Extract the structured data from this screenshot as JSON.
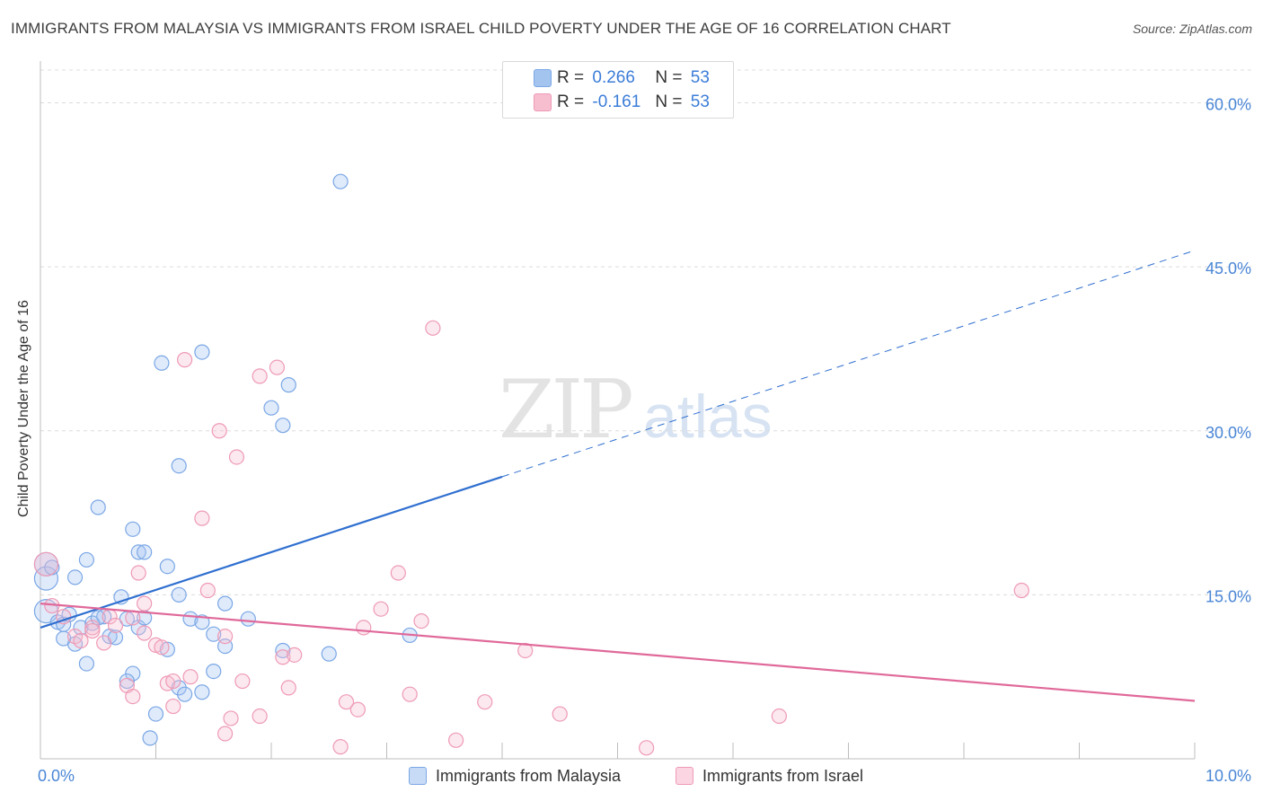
{
  "header": {
    "title": "IMMIGRANTS FROM MALAYSIA VS IMMIGRANTS FROM ISRAEL CHILD POVERTY UNDER THE AGE OF 16 CORRELATION CHART",
    "source": "Source: ZipAtlas.com"
  },
  "watermark": {
    "zip": "ZIP",
    "atlas": "atlas"
  },
  "legend": {
    "r_label": "R =",
    "n_label": "N =",
    "series": [
      {
        "r": "0.266",
        "n": "53"
      },
      {
        "r": "-0.161",
        "n": "53"
      }
    ]
  },
  "chart_data": {
    "type": "scatter",
    "title": "IMMIGRANTS FROM MALAYSIA VS IMMIGRANTS FROM ISRAEL CHILD POVERTY UNDER THE AGE OF 16 CORRELATION CHART",
    "xlabel": "",
    "ylabel": "Child Poverty Under the Age of 16",
    "xlim": [
      0,
      10
    ],
    "ylim": [
      0,
      63
    ],
    "x_tick_labels": [
      {
        "value": 0,
        "label": "0.0%"
      },
      {
        "value": 10,
        "label": "10.0%"
      }
    ],
    "y_tick_labels": [
      {
        "value": 15,
        "label": "15.0%"
      },
      {
        "value": 30,
        "label": "30.0%"
      },
      {
        "value": 45,
        "label": "45.0%"
      },
      {
        "value": 60,
        "label": "60.0%"
      }
    ],
    "series": [
      {
        "name": "Immigrants from Malaysia",
        "color": "#7aa7e6",
        "fill": "rgba(164,196,240,0.35)",
        "line_color": "#2f6fd0",
        "trend": {
          "x0": 0,
          "y0": 12.0,
          "x_solid_end": 4.0,
          "x1": 10,
          "y1": 46.5
        },
        "points": [
          [
            0.05,
            17.8
          ],
          [
            0.05,
            16.5
          ],
          [
            0.1,
            17.5
          ],
          [
            0.05,
            13.5
          ],
          [
            0.15,
            12.5
          ],
          [
            0.2,
            12.3
          ],
          [
            0.25,
            13.2
          ],
          [
            0.35,
            12.0
          ],
          [
            0.2,
            11.0
          ],
          [
            0.3,
            10.5
          ],
          [
            0.45,
            12.4
          ],
          [
            0.55,
            13.0
          ],
          [
            0.4,
            8.7
          ],
          [
            0.6,
            11.2
          ],
          [
            0.7,
            14.8
          ],
          [
            0.75,
            12.8
          ],
          [
            0.85,
            12.0
          ],
          [
            0.9,
            12.9
          ],
          [
            0.8,
            7.8
          ],
          [
            0.75,
            7.1
          ],
          [
            1.2,
            15.0
          ],
          [
            1.1,
            10.0
          ],
          [
            0.5,
            12.9
          ],
          [
            0.3,
            16.6
          ],
          [
            0.4,
            18.2
          ],
          [
            0.5,
            23.0
          ],
          [
            0.8,
            21.0
          ],
          [
            0.85,
            18.9
          ],
          [
            0.9,
            18.9
          ],
          [
            1.1,
            17.6
          ],
          [
            1.05,
            36.2
          ],
          [
            1.4,
            37.2
          ],
          [
            1.2,
            26.8
          ],
          [
            1.6,
            14.2
          ],
          [
            1.6,
            10.3
          ],
          [
            2.0,
            32.1
          ],
          [
            2.1,
            30.5
          ],
          [
            2.15,
            34.2
          ],
          [
            2.6,
            52.8
          ],
          [
            1.3,
            12.8
          ],
          [
            1.5,
            11.4
          ],
          [
            2.1,
            9.9
          ],
          [
            2.5,
            9.6
          ],
          [
            1.8,
            12.8
          ],
          [
            1.4,
            12.5
          ],
          [
            1.5,
            8.0
          ],
          [
            1.2,
            6.5
          ],
          [
            1.25,
            5.9
          ],
          [
            1.4,
            6.1
          ],
          [
            1.0,
            4.1
          ],
          [
            0.95,
            1.9
          ],
          [
            3.2,
            11.3
          ],
          [
            0.65,
            11.1
          ]
        ]
      },
      {
        "name": "Immigrants from Israel",
        "color": "#ee9ab5",
        "fill": "rgba(247,190,208,0.35)",
        "line_color": "#e0699a",
        "trend": {
          "x0": 0,
          "y0": 14.2,
          "x1": 10,
          "y1": 5.3
        },
        "points": [
          [
            0.05,
            17.8
          ],
          [
            0.1,
            14.0
          ],
          [
            0.2,
            13.0
          ],
          [
            0.3,
            11.2
          ],
          [
            0.45,
            12.0
          ],
          [
            0.55,
            10.6
          ],
          [
            0.6,
            13.0
          ],
          [
            0.65,
            12.2
          ],
          [
            0.8,
            12.9
          ],
          [
            0.9,
            11.5
          ],
          [
            0.85,
            17.0
          ],
          [
            0.9,
            14.2
          ],
          [
            0.45,
            11.7
          ],
          [
            0.35,
            10.8
          ],
          [
            0.75,
            6.7
          ],
          [
            0.8,
            5.7
          ],
          [
            1.0,
            10.4
          ],
          [
            1.05,
            10.2
          ],
          [
            1.1,
            6.9
          ],
          [
            1.15,
            7.1
          ],
          [
            1.3,
            7.5
          ],
          [
            1.15,
            4.8
          ],
          [
            1.25,
            36.5
          ],
          [
            1.55,
            30.0
          ],
          [
            1.4,
            22.0
          ],
          [
            1.45,
            15.4
          ],
          [
            1.6,
            11.2
          ],
          [
            1.7,
            27.6
          ],
          [
            1.9,
            35.0
          ],
          [
            2.05,
            35.8
          ],
          [
            1.75,
            7.1
          ],
          [
            2.15,
            6.5
          ],
          [
            2.1,
            9.3
          ],
          [
            2.2,
            9.5
          ],
          [
            1.65,
            3.7
          ],
          [
            1.6,
            2.3
          ],
          [
            1.9,
            3.9
          ],
          [
            2.6,
            1.1
          ],
          [
            2.65,
            5.2
          ],
          [
            2.75,
            4.5
          ],
          [
            2.8,
            12.0
          ],
          [
            2.95,
            13.7
          ],
          [
            3.1,
            17.0
          ],
          [
            3.2,
            5.9
          ],
          [
            3.3,
            12.6
          ],
          [
            3.4,
            39.4
          ],
          [
            3.6,
            1.7
          ],
          [
            3.85,
            5.2
          ],
          [
            4.2,
            9.9
          ],
          [
            4.5,
            4.1
          ],
          [
            5.25,
            1.0
          ],
          [
            6.4,
            3.9
          ],
          [
            8.5,
            15.4
          ]
        ]
      }
    ]
  }
}
